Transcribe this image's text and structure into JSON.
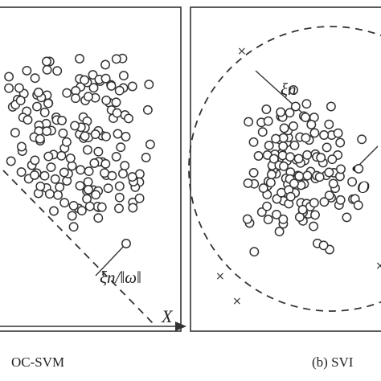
{
  "panels": [
    {
      "id": "left",
      "caption": "OC-SVM",
      "slack_label": "ξn/‖ω‖",
      "axis_label": "X"
    },
    {
      "id": "right",
      "caption": "(b) SVI",
      "slack_label": "ξn",
      "center_label": "O"
    }
  ]
}
